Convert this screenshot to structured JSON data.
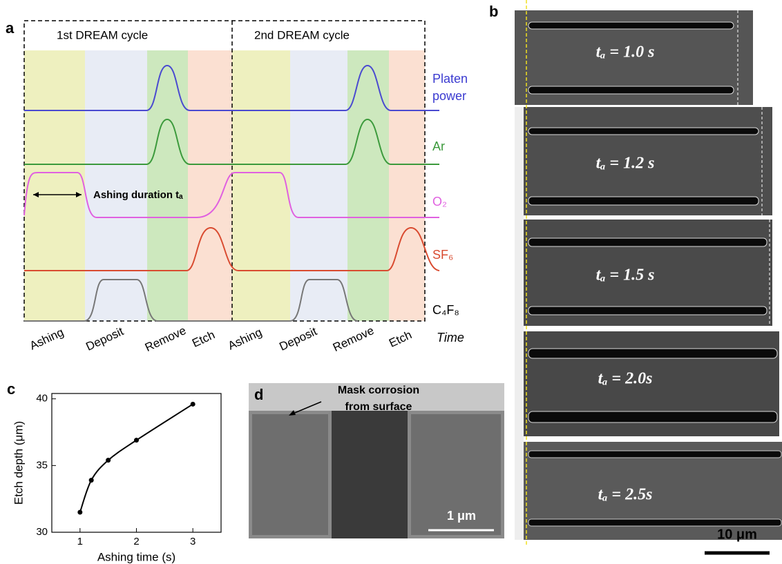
{
  "panel_a": {
    "label": "a",
    "cycles": [
      "1st DREAM cycle",
      "2nd DREAM cycle"
    ],
    "signals": {
      "platen": [
        "Platen",
        "power"
      ],
      "ar": "Ar",
      "o2": "O₂",
      "sf6": "SF₆",
      "c4f8": "C₄F₈"
    },
    "annotation": "Ashing duration tₐ",
    "phases": [
      "Ashing",
      "Deposit",
      "Remove",
      "Etch",
      "Ashing",
      "Deposit",
      "Remove",
      "Etch"
    ],
    "time_label": "Time"
  },
  "panel_b": {
    "label": "b",
    "images": [
      "tₐ = 1.0 s",
      "tₐ = 1.2 s",
      "tₐ = 1.5 s",
      "tₐ = 2.0s",
      "tₐ = 2.5s"
    ],
    "scale_bar": "10 μm"
  },
  "chart_data": {
    "type": "line",
    "label": "c",
    "x_label": "Ashing time (s)",
    "y_label": "Etch depth (μm)",
    "x": [
      1,
      1.2,
      1.5,
      2,
      3
    ],
    "values": [
      31.5,
      33.9,
      35.4,
      36.9,
      39.6
    ],
    "color": "#000000",
    "xlim": [
      0.5,
      3.5
    ],
    "ylim": [
      30,
      40.4
    ],
    "xticks": [
      1,
      2,
      3
    ],
    "yticks": [
      30,
      35,
      40
    ]
  },
  "panel_d": {
    "label": "d",
    "annotation": [
      "Mask corrosion",
      "from surface"
    ],
    "scale_bar": "1 μm"
  }
}
